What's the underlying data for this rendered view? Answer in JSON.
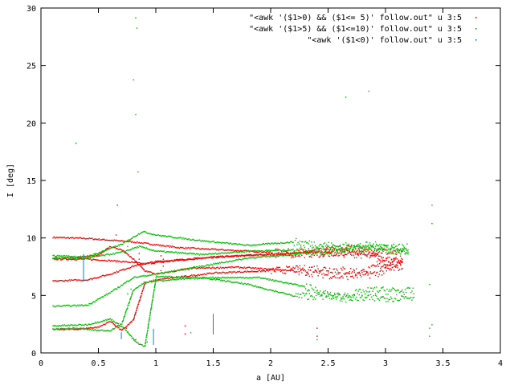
{
  "chart_data": {
    "type": "scatter",
    "title": "",
    "xlabel": "a [AU]",
    "ylabel": "I [deg]",
    "xlim": [
      0,
      4
    ],
    "ylim": [
      0,
      30
    ],
    "xticks": [
      0,
      0.5,
      1,
      1.5,
      2,
      2.5,
      3,
      3.5,
      4
    ],
    "xtick_labels": [
      "0",
      "0.5",
      "1",
      "1.5",
      "2",
      "2.5",
      "3",
      "3.5",
      "4"
    ],
    "yticks": [
      0,
      5,
      10,
      15,
      20,
      25,
      30
    ],
    "ytick_labels": [
      "0",
      "5",
      "10",
      "15",
      "20",
      "25",
      "30"
    ],
    "grid": false,
    "legend_position": "top-right",
    "series": [
      {
        "name": "\"<awk '($1>0) && ($1<= 5)' follow.out\" u 3:5",
        "color": "#ff0000",
        "tracks": [
          [
            [
              0.1,
              10.1
            ],
            [
              0.4,
              10.0
            ],
            [
              0.8,
              9.7
            ],
            [
              1.2,
              9.2
            ],
            [
              1.6,
              9.0
            ],
            [
              2.0,
              8.8
            ],
            [
              2.4,
              8.8
            ],
            [
              2.7,
              9.2
            ],
            [
              3.0,
              8.2
            ],
            [
              3.15,
              7.8
            ]
          ],
          [
            [
              0.1,
              8.2
            ],
            [
              0.4,
              8.2
            ],
            [
              0.7,
              8.0
            ],
            [
              0.9,
              7.8
            ],
            [
              1.1,
              8.0
            ],
            [
              1.5,
              8.4
            ],
            [
              2.0,
              8.6
            ],
            [
              2.5,
              8.7
            ],
            [
              2.9,
              9.0
            ],
            [
              3.15,
              8.6
            ]
          ],
          [
            [
              0.1,
              6.3
            ],
            [
              0.4,
              6.4
            ],
            [
              0.6,
              6.9
            ],
            [
              0.8,
              7.6
            ],
            [
              1.0,
              8.0
            ],
            [
              1.4,
              8.3
            ],
            [
              1.9,
              8.6
            ],
            [
              2.4,
              8.8
            ],
            [
              2.8,
              8.6
            ],
            [
              3.15,
              7.6
            ]
          ],
          [
            [
              0.1,
              2.1
            ],
            [
              0.3,
              2.1
            ],
            [
              0.5,
              2.3
            ],
            [
              0.6,
              2.8
            ],
            [
              0.7,
              2.0
            ],
            [
              0.8,
              2.9
            ],
            [
              0.9,
              6.1
            ],
            [
              1.0,
              6.4
            ],
            [
              1.5,
              7.0
            ],
            [
              2.0,
              7.2
            ],
            [
              2.4,
              7.4
            ],
            [
              2.8,
              7.1
            ],
            [
              3.0,
              7.8
            ],
            [
              3.15,
              8.2
            ]
          ],
          [
            [
              0.1,
              8.3
            ],
            [
              0.3,
              8.3
            ],
            [
              0.5,
              8.6
            ],
            [
              0.6,
              9.3
            ],
            [
              0.7,
              9.0
            ],
            [
              0.8,
              8.2
            ],
            [
              0.9,
              7.2
            ],
            [
              1.0,
              6.9
            ],
            [
              1.3,
              7.4
            ],
            [
              1.7,
              7.5
            ],
            [
              2.2,
              7.2
            ],
            [
              2.6,
              6.7
            ],
            [
              2.9,
              6.9
            ],
            [
              3.15,
              7.6
            ]
          ]
        ],
        "extra_points": [
          [
            0.85,
            8.2
          ],
          [
            0.85,
            8.7
          ],
          [
            1.04,
            7.2
          ],
          [
            1.06,
            7.6
          ],
          [
            1.06,
            7.9
          ],
          [
            1.06,
            8.2
          ],
          [
            1.04,
            8.5
          ],
          [
            0.74,
            2.2
          ],
          [
            0.82,
            1.2
          ],
          [
            2.4,
            1.5
          ],
          [
            2.4,
            2.2
          ],
          [
            1.25,
            1.7
          ],
          [
            1.25,
            2.4
          ],
          [
            0.66,
            12.9
          ],
          [
            0.65,
            10.3
          ]
        ]
      },
      {
        "name": "\"<awk '($1>5) && ($1<=10)' follow.out\" u 3:5",
        "color": "#00c000",
        "tracks": [
          [
            [
              0.1,
              8.5
            ],
            [
              0.4,
              8.4
            ],
            [
              0.7,
              9.5
            ],
            [
              0.88,
              10.6
            ],
            [
              1.0,
              10.3
            ],
            [
              1.4,
              9.8
            ],
            [
              1.8,
              9.4
            ],
            [
              2.2,
              9.7
            ],
            [
              2.6,
              9.3
            ],
            [
              2.9,
              9.4
            ],
            [
              3.2,
              9.2
            ]
          ],
          [
            [
              0.1,
              8.3
            ],
            [
              0.4,
              8.3
            ],
            [
              0.7,
              8.8
            ],
            [
              0.85,
              9.3
            ],
            [
              1.0,
              8.9
            ],
            [
              1.4,
              8.6
            ],
            [
              1.8,
              8.9
            ],
            [
              2.2,
              9.0
            ],
            [
              2.6,
              9.0
            ],
            [
              2.9,
              9.3
            ],
            [
              3.2,
              8.8
            ]
          ],
          [
            [
              0.1,
              4.1
            ],
            [
              0.4,
              4.2
            ],
            [
              0.6,
              5.3
            ],
            [
              0.8,
              6.6
            ],
            [
              1.0,
              6.9
            ],
            [
              1.4,
              7.6
            ],
            [
              1.8,
              8.3
            ],
            [
              2.3,
              8.7
            ],
            [
              2.7,
              9.2
            ],
            [
              3.0,
              9.0
            ],
            [
              3.2,
              8.8
            ]
          ],
          [
            [
              0.1,
              2.4
            ],
            [
              0.4,
              2.5
            ],
            [
              0.6,
              3.0
            ],
            [
              0.72,
              2.2
            ],
            [
              0.82,
              1.0
            ],
            [
              0.9,
              0.6
            ],
            [
              1.0,
              6.7
            ],
            [
              1.4,
              6.6
            ],
            [
              1.8,
              6.0
            ],
            [
              2.2,
              5.0
            ],
            [
              2.6,
              5.0
            ],
            [
              2.9,
              5.5
            ],
            [
              3.25,
              5.4
            ]
          ],
          [
            [
              0.1,
              2.1
            ],
            [
              0.3,
              2.2
            ],
            [
              0.5,
              2.0
            ],
            [
              0.6,
              2.0
            ],
            [
              0.7,
              2.6
            ],
            [
              0.8,
              5.5
            ],
            [
              0.9,
              6.2
            ],
            [
              1.1,
              6.4
            ],
            [
              1.5,
              6.6
            ],
            [
              1.9,
              6.6
            ],
            [
              2.3,
              5.8
            ],
            [
              2.6,
              4.8
            ],
            [
              2.9,
              4.8
            ],
            [
              3.25,
              4.9
            ]
          ]
        ],
        "extra_points": [
          [
            0.82,
            29.2
          ],
          [
            0.83,
            28.3
          ],
          [
            0.8,
            23.8
          ],
          [
            0.82,
            20.8
          ],
          [
            0.84,
            15.8
          ],
          [
            0.3,
            18.3
          ],
          [
            0.75,
            9.3
          ],
          [
            0.75,
            5.2
          ],
          [
            0.78,
            5.6
          ],
          [
            0.8,
            1.3
          ],
          [
            0.92,
            1.0
          ],
          [
            3.4,
            12.9
          ],
          [
            3.4,
            11.3
          ],
          [
            3.38,
            6.0
          ],
          [
            3.4,
            2.5
          ],
          [
            3.38,
            2.2
          ],
          [
            3.38,
            1.5
          ],
          [
            2.4,
            1.2
          ],
          [
            1.3,
            1.8
          ],
          [
            2.65,
            22.3
          ],
          [
            2.85,
            22.8
          ]
        ]
      },
      {
        "name": "\"<awk '($1<0)' follow.out\" u 3:5",
        "color": "#0080ff",
        "segments": [
          [
            [
              0.37,
              6.2
            ],
            [
              0.37,
              8.6
            ]
          ],
          [
            [
              0.7,
              1.2
            ],
            [
              0.7,
              1.8
            ]
          ],
          [
            [
              0.98,
              0.7
            ],
            [
              0.98,
              2.1
            ]
          ],
          [
            [
              1.5,
              1.6
            ],
            [
              1.5,
              3.4
            ]
          ]
        ]
      }
    ]
  }
}
